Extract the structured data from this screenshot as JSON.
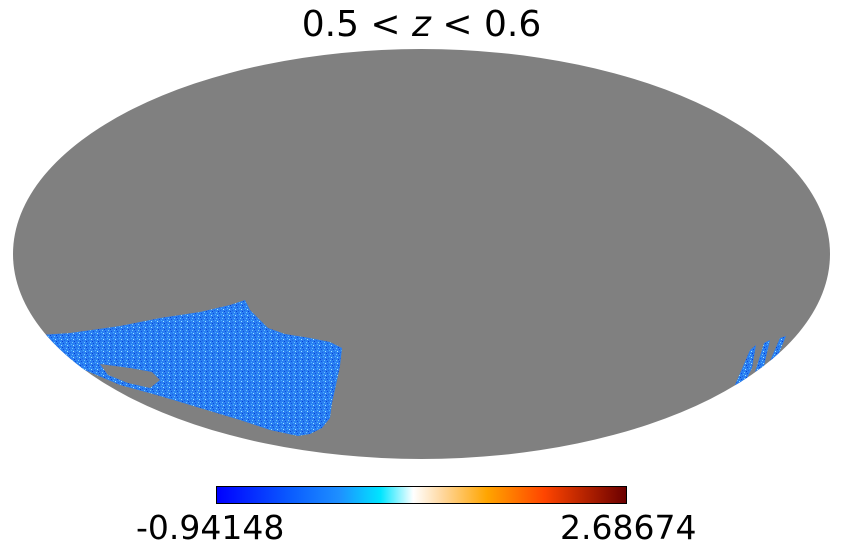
{
  "chart_data": {
    "type": "heatmap",
    "projection": "mollweide",
    "title": "0.5 < z < 0.6",
    "title_parts": {
      "left": "0.5 < ",
      "variable": "z",
      "right": " < 0.6"
    },
    "colorbar": {
      "min_label": "-0.94148",
      "max_label": "2.68674",
      "min": -0.94148,
      "max": 2.68674,
      "colormap": "jet"
    },
    "masked_color": "#808080",
    "footprint_fill_color": "#2a7ff2",
    "grid": false,
    "legend": "bottom colorbar"
  },
  "colors": {
    "background": "#ffffff",
    "masked": "#808080",
    "low": "#0000ff",
    "mid_low": "#1e90ff",
    "mid": "#00e5ff",
    "neutral": "#ffffff",
    "mid_high": "#ffa500",
    "high": "#ff4500",
    "top": "#6b0000"
  }
}
